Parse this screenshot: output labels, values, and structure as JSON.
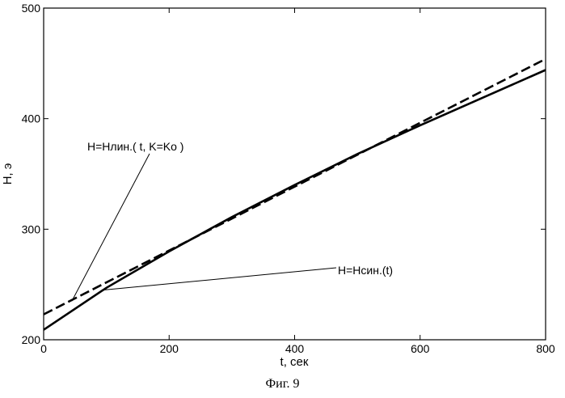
{
  "chart_data": {
    "type": "line",
    "xlabel": "t, сек",
    "ylabel": "H, э",
    "xlim": [
      0,
      800
    ],
    "ylim": [
      200,
      500
    ],
    "xticks": [
      0,
      200,
      400,
      600,
      800
    ],
    "yticks": [
      200,
      300,
      400,
      500
    ],
    "grid": false,
    "series": [
      {
        "name": "H=Hлин.( t, K=Ko )",
        "style": "dashed",
        "x": [
          0,
          800
        ],
        "y": [
          223,
          454
        ]
      },
      {
        "name": "H=Hсин.(t)",
        "style": "solid",
        "x": [
          0,
          100,
          200,
          300,
          400,
          500,
          600,
          700,
          800
        ],
        "y": [
          209,
          247,
          280,
          311,
          340,
          368,
          394,
          419,
          444
        ]
      }
    ],
    "annotations": [
      {
        "text": "H=Hлин.( t, K=Ko )",
        "series": 0,
        "x": 45,
        "y": 235
      },
      {
        "text": "H=Hсин.(t)",
        "series": 1,
        "x": 95,
        "y": 245
      }
    ]
  },
  "caption": "Фиг. 9"
}
